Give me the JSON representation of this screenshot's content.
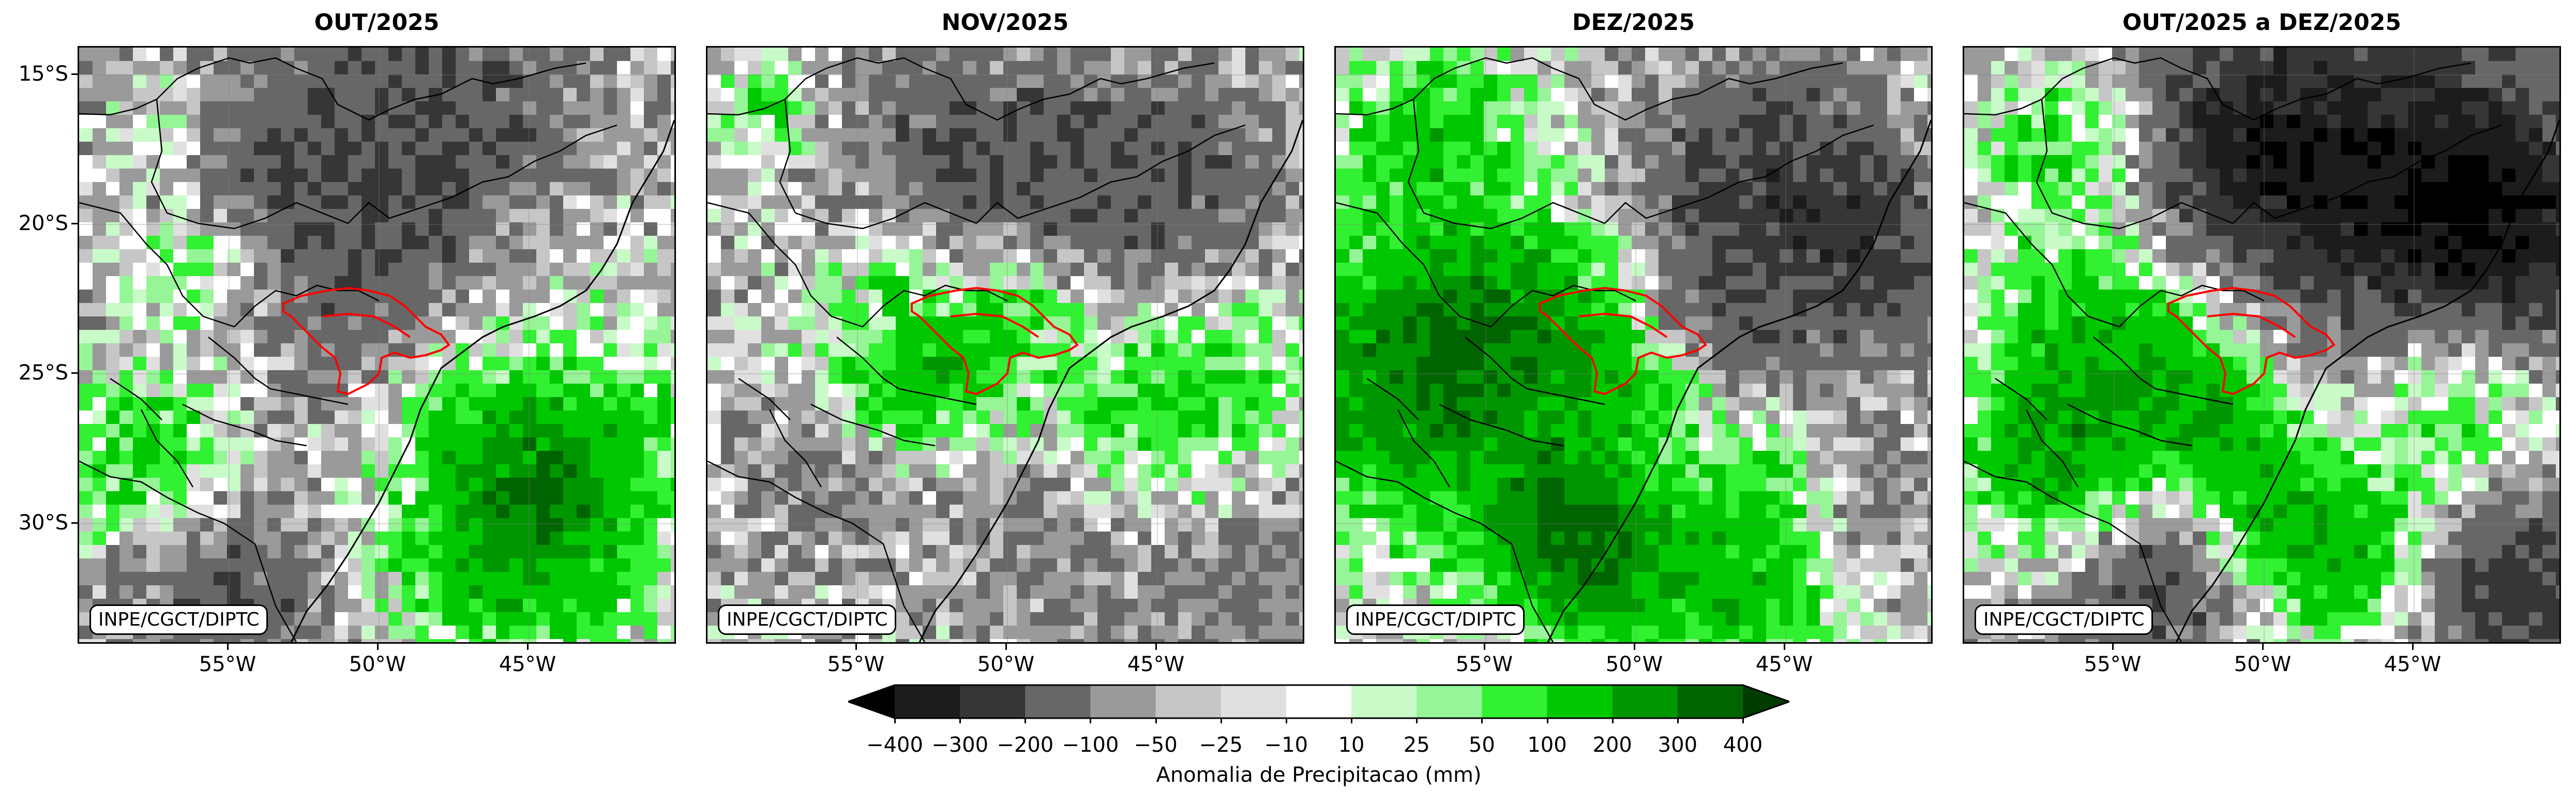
{
  "panels": [
    {
      "id": "p1",
      "title": "OUT/2025",
      "credit": "INPE/CGCT/DIPTC",
      "left_axis": true
    },
    {
      "id": "p2",
      "title": "NOV/2025",
      "credit": "INPE/CGCT/DIPTC",
      "left_axis": false
    },
    {
      "id": "p3",
      "title": "DEZ/2025",
      "credit": "INPE/CGCT/DIPTC",
      "left_axis": false
    },
    {
      "id": "p4",
      "title": "OUT/2025 a DEZ/2025",
      "credit": "INPE/CGCT/DIPTC",
      "left_axis": false
    }
  ],
  "lat_labels": [
    "15°S",
    "20°S",
    "25°S",
    "30°S"
  ],
  "lon_labels": [
    "55°W",
    "50°W",
    "45°W"
  ],
  "colorbar": {
    "label": "Anomalia de Precipitacao (mm)",
    "ticks": [
      "−400",
      "−300",
      "−200",
      "−100",
      "−50",
      "−25",
      "−10",
      "10",
      "25",
      "50",
      "100",
      "200",
      "300",
      "400"
    ],
    "colors": [
      "#000000",
      "#1c1c1c",
      "#363636",
      "#676767",
      "#9a9a9a",
      "#c6c6c6",
      "#e0e0e0",
      "#ffffff",
      "#c8fbc8",
      "#96f596",
      "#32f032",
      "#00c800",
      "#009600",
      "#006400",
      "#003c00"
    ]
  },
  "colors": {
    "basin_outline": "#ff0000",
    "border_lines": "#000000",
    "grid_lines": "#808080"
  }
}
